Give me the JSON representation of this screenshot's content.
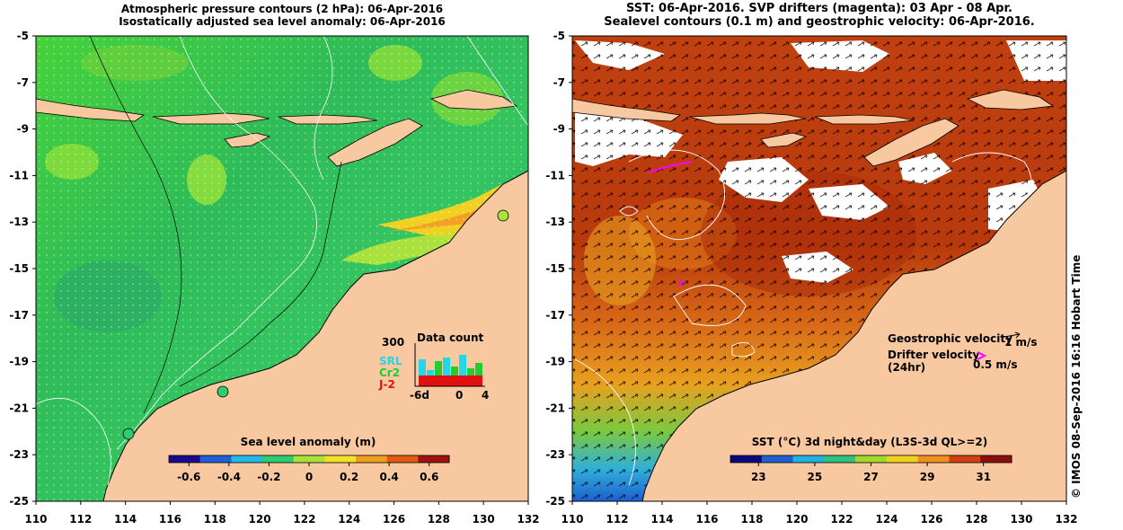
{
  "left_panel": {
    "title_line1": "Atmospheric pressure contours (2 hPa): 06-Apr-2016",
    "title_line2": "Isostatically adjusted sea level anomaly: 06-Apr-2016",
    "colorbar_label": "Sea level anomaly (m)",
    "colorbar_ticks": [
      "-0.6",
      "-0.4",
      "-0.2",
      "0",
      "0.2",
      "0.4",
      "0.6"
    ],
    "colorbar_colors": [
      "#1a0a8c",
      "#1f5fd8",
      "#22b8e8",
      "#2ecc71",
      "#a8e23a",
      "#f2e02a",
      "#f0a020",
      "#e05a10",
      "#a01010"
    ],
    "data_count": {
      "title": "Data count",
      "ymax_label": "300",
      "x_start": "-6d",
      "x_mid": "0",
      "x_end": "4",
      "legend": [
        {
          "name": "SRL",
          "color": "#22d8e8"
        },
        {
          "name": "Cr2",
          "color": "#22cc33"
        },
        {
          "name": "J-2",
          "color": "#e01010"
        }
      ]
    }
  },
  "right_panel": {
    "title_line1": "SST: 06-Apr-2016. SVP drifters (magenta): 03 Apr - 08 Apr.",
    "title_line2": "Sealevel contours (0.1 m) and geostrophic velocity: 06-Apr-2016.",
    "colorbar_label": "SST (°C) 3d night&day (L3S-3d QL>=2)",
    "colorbar_ticks": [
      "23",
      "25",
      "27",
      "29",
      "31"
    ],
    "colorbar_colors": [
      "#0a0a80",
      "#1e60d0",
      "#22b0e0",
      "#30c080",
      "#a0d830",
      "#f0d020",
      "#f09020",
      "#d04010",
      "#8a1010"
    ],
    "legend_geo": "Geostrophic velocity",
    "legend_geo_value": "1 m/s",
    "legend_drifter_line1": "Drifter velocity",
    "legend_drifter_line2": "(24hr)",
    "legend_drifter_value": "0.5 m/s",
    "side_text": "© IMOS 08-Sep-2016 16:16 Hobart Time"
  },
  "axes": {
    "y_ticks": [
      "-5",
      "-7",
      "-9",
      "-11",
      "-13",
      "-15",
      "-17",
      "-19",
      "-21",
      "-23",
      "-25"
    ],
    "x_ticks": [
      "110",
      "112",
      "114",
      "116",
      "118",
      "120",
      "122",
      "124",
      "126",
      "128",
      "130",
      "132"
    ]
  },
  "colors": {
    "land": "#f8c8a0",
    "ocean_left": "#3cc840",
    "ocean_right": "#c84810"
  }
}
